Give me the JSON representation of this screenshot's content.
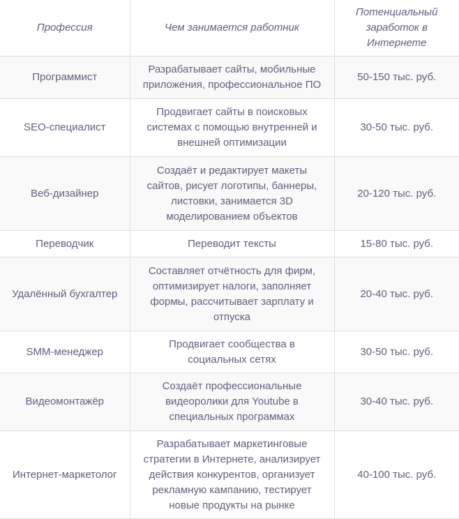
{
  "table": {
    "headers": [
      "Профессия",
      "Чем занимается работник",
      "Потенциальный заработок в Интернете"
    ],
    "rows": [
      {
        "profession": "Программист",
        "description": "Разрабатывает сайты, мобильные приложения, профессиональное ПО",
        "income": "50-150 тыс. руб."
      },
      {
        "profession": "SEO-специалист",
        "description": "Продвигает сайты в поисковых системах с помощью внутренней и внешней оптимизации",
        "income": "30-50 тыс. руб."
      },
      {
        "profession": "Веб-дизайнер",
        "description": "Создаёт и редактирует макеты сайтов, рисует логотипы, баннеры, листовки, занимается 3D моделированием объектов",
        "income": "20-120 тыс. руб."
      },
      {
        "profession": "Переводчик",
        "description": "Переводит тексты",
        "income": "15-80 тыс. руб."
      },
      {
        "profession": "Удалённый бухгалтер",
        "description": "Составляет отчётность для фирм, оптимизирует налоги, заполняет формы, рассчитывает зарплату и отпуска",
        "income": "20-40 тыс. руб."
      },
      {
        "profession": "SMM-менеджер",
        "description": "Продвигает сообщества в социальных сетях",
        "income": "30-50 тыс. руб."
      },
      {
        "profession": "Видеомонтажёр",
        "description": "Создаёт профессиональные видеоролики для Youtube в специальных программах",
        "income": "30-40 тыс. руб."
      },
      {
        "profession": "Интернет-маркетолог",
        "description": "Разрабатывает маркетинговые стратегии в Интернете, анализирует действия конкурентов, организует рекламную кампанию, тестирует новые продукты на рынке",
        "income": "40-100 тыс. руб."
      }
    ]
  },
  "colors": {
    "text": "#5f5f7e",
    "stripe": "#f9f9f9",
    "border": "#dedede"
  }
}
